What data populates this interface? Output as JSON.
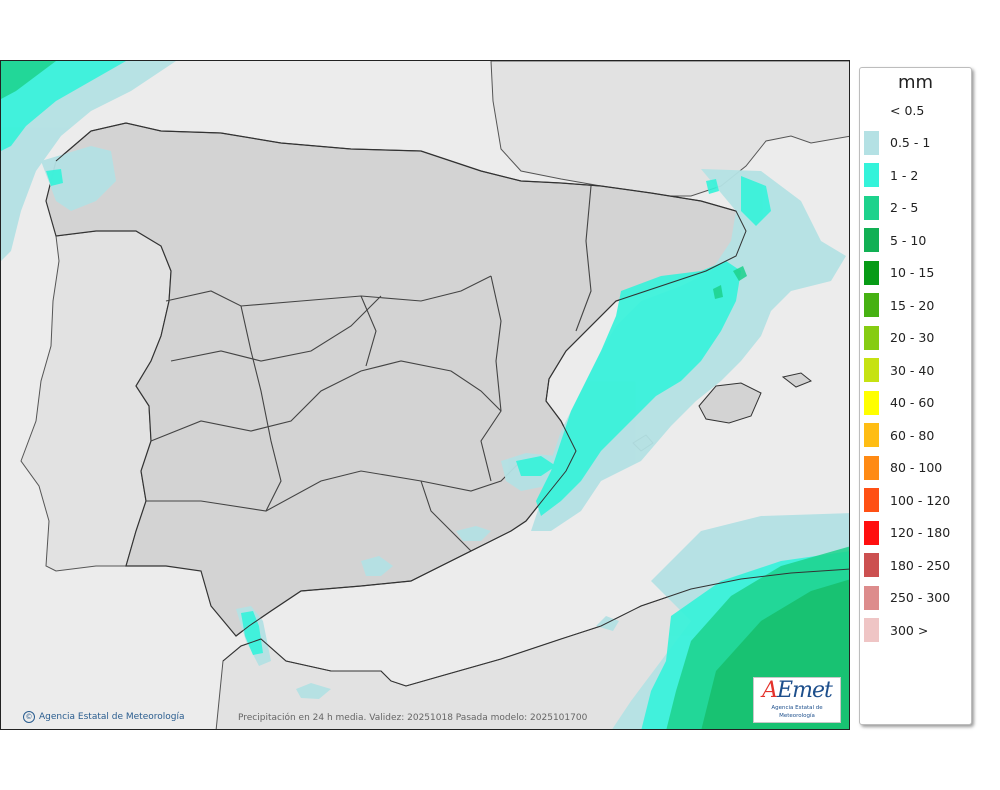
{
  "map": {
    "credit": "Agencia Estatal de Meteorología",
    "footer": "Precipitación en 24 h media. Validez: 20251018 Pasada modelo: 2025101700",
    "logo_word": "AEmet",
    "logo_sub": "Agencia Estatal de Meteorología"
  },
  "legend": {
    "unit": "mm",
    "items": [
      {
        "label": "< 0.5",
        "color": "#ffffff"
      },
      {
        "label": "0.5 - 1",
        "color": "#b4e1e4"
      },
      {
        "label": "1 - 2",
        "color": "#34f3da"
      },
      {
        "label": "2 - 5",
        "color": "#1dd28c"
      },
      {
        "label": "5 - 10",
        "color": "#11b054"
      },
      {
        "label": "10 - 15",
        "color": "#079b16"
      },
      {
        "label": "15 - 20",
        "color": "#46b112"
      },
      {
        "label": "20 - 30",
        "color": "#86cc12"
      },
      {
        "label": "30 - 40",
        "color": "#c6e212"
      },
      {
        "label": "40 - 60",
        "color": "#ffff00"
      },
      {
        "label": "60 - 80",
        "color": "#ffbd14"
      },
      {
        "label": "80 - 100",
        "color": "#ff8a14"
      },
      {
        "label": "100 - 120",
        "color": "#ff5014"
      },
      {
        "label": "120 - 180",
        "color": "#ff0f0f"
      },
      {
        "label": "180 - 250",
        "color": "#cc5050"
      },
      {
        "label": "250 - 300",
        "color": "#dd8c8c"
      },
      {
        "label": "300 >",
        "color": "#efc5c5"
      }
    ]
  }
}
